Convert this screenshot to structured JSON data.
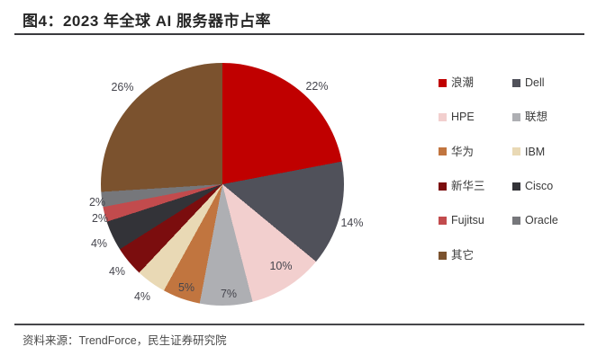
{
  "header": {
    "title": "图4：2023 年全球 AI 服务器市占率"
  },
  "chart_data": {
    "type": "pie",
    "title": "2023 年全球 AI 服务器市占率",
    "unit": "percent",
    "start_angle_deg": 0,
    "direction": "clockwise",
    "legend_position": "right",
    "legend_columns": 2,
    "slices": [
      {
        "label": "浪潮",
        "value": 22,
        "display": "22%",
        "color": "#c00000"
      },
      {
        "label": "Dell",
        "value": 14,
        "display": "14%",
        "color": "#50515a"
      },
      {
        "label": "HPE",
        "value": 10,
        "display": "10%",
        "color": "#f2cfce"
      },
      {
        "label": "联想",
        "value": 7,
        "display": "7%",
        "color": "#aeafb3"
      },
      {
        "label": "华为",
        "value": 5,
        "display": "5%",
        "color": "#c1753f"
      },
      {
        "label": "IBM",
        "value": 4,
        "display": "4%",
        "color": "#e9d9b5"
      },
      {
        "label": "新华三",
        "value": 4,
        "display": "4%",
        "color": "#7b0d0e"
      },
      {
        "label": "Cisco",
        "value": 4,
        "display": "4%",
        "color": "#333338"
      },
      {
        "label": "Fujitsu",
        "value": 2,
        "display": "2%",
        "color": "#c24b4d"
      },
      {
        "label": "Oracle",
        "value": 2,
        "display": "2%",
        "color": "#76777b"
      },
      {
        "label": "其它",
        "value": 26,
        "display": "26%",
        "color": "#7b522e"
      }
    ]
  },
  "footer": {
    "source": "资料来源：TrendForce，民生证券研究院"
  }
}
